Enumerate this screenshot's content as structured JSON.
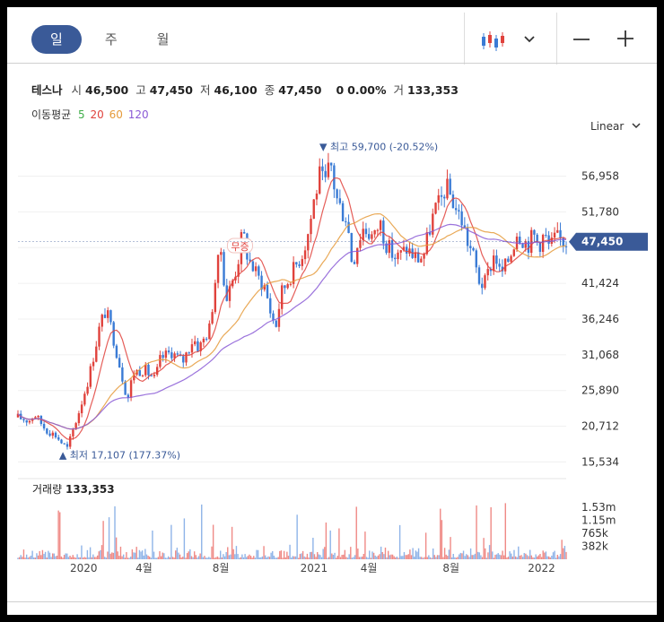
{
  "tabs": [
    {
      "label": "일",
      "active": true
    },
    {
      "label": "주",
      "active": false
    },
    {
      "label": "월",
      "active": false
    }
  ],
  "quote": {
    "name": "테스나",
    "open_label": "시",
    "open": "46,500",
    "high_label": "고",
    "high": "47,450",
    "low_label": "저",
    "low": "46,100",
    "close_label": "종",
    "close": "47,450",
    "change": "0",
    "change_pct": "0.00%",
    "volume_label": "거",
    "volume": "133,353"
  },
  "ma": {
    "label": "이동평균",
    "periods": [
      {
        "label": "5",
        "color": "#3fae49"
      },
      {
        "label": "20",
        "color": "#e0423c"
      },
      {
        "label": "60",
        "color": "#e59a3a"
      },
      {
        "label": "120",
        "color": "#8a5ad6"
      }
    ]
  },
  "scale_label": "Linear",
  "icons": {
    "chart_type": "candlestick-icon",
    "dropdown": "chevron-down-icon",
    "zoom_out": "minus-icon",
    "zoom_in": "plus-icon"
  },
  "chart_data": {
    "type": "candlestick",
    "price_axis": {
      "ticks": [
        56958,
        51780,
        46602,
        41424,
        36246,
        31068,
        25890,
        20712,
        15534
      ],
      "tick_labels": [
        "56,958",
        "51,780",
        "",
        "41,424",
        "36,246",
        "31,068",
        "25,890",
        "20,712",
        "15,534"
      ],
      "range": [
        13900,
        61700
      ]
    },
    "current_price": {
      "value": 47450,
      "label": "47,450",
      "color": "#3a5a98"
    },
    "max_annotation": {
      "label": "최고",
      "value": "59,700",
      "pct": "(-20.52%)",
      "price": 59700
    },
    "min_annotation": {
      "label": "최저",
      "value": "17,107",
      "pct": "(177.37%)",
      "price": 17107
    },
    "event_marker": {
      "label": "무증",
      "price": 46500
    },
    "time_axis": {
      "labels": [
        "2020",
        "4월",
        "8월",
        "2021",
        "4월",
        "8월",
        "2022"
      ]
    },
    "price_path": [
      {
        "t": 0.0,
        "p": 22000
      },
      {
        "t": 0.02,
        "p": 21500
      },
      {
        "t": 0.03,
        "p": 22500
      },
      {
        "t": 0.05,
        "p": 20300
      },
      {
        "t": 0.07,
        "p": 19300
      },
      {
        "t": 0.08,
        "p": 18300
      },
      {
        "t": 0.09,
        "p": 17500
      },
      {
        "t": 0.11,
        "p": 22500
      },
      {
        "t": 0.13,
        "p": 28000
      },
      {
        "t": 0.15,
        "p": 35500
      },
      {
        "t": 0.16,
        "p": 37500
      },
      {
        "t": 0.17,
        "p": 35000
      },
      {
        "t": 0.19,
        "p": 28000
      },
      {
        "t": 0.2,
        "p": 24500
      },
      {
        "t": 0.21,
        "p": 28500
      },
      {
        "t": 0.23,
        "p": 29000
      },
      {
        "t": 0.25,
        "p": 27500
      },
      {
        "t": 0.26,
        "p": 30500
      },
      {
        "t": 0.28,
        "p": 31500
      },
      {
        "t": 0.3,
        "p": 30000
      },
      {
        "t": 0.32,
        "p": 33500
      },
      {
        "t": 0.33,
        "p": 32000
      },
      {
        "t": 0.35,
        "p": 35000
      },
      {
        "t": 0.36,
        "p": 42000
      },
      {
        "t": 0.37,
        "p": 46500
      },
      {
        "t": 0.38,
        "p": 39000
      },
      {
        "t": 0.4,
        "p": 44000
      },
      {
        "t": 0.41,
        "p": 49000
      },
      {
        "t": 0.42,
        "p": 45000
      },
      {
        "t": 0.44,
        "p": 42000
      },
      {
        "t": 0.45,
        "p": 41000
      },
      {
        "t": 0.46,
        "p": 37500
      },
      {
        "t": 0.47,
        "p": 35000
      },
      {
        "t": 0.48,
        "p": 40000
      },
      {
        "t": 0.5,
        "p": 43000
      },
      {
        "t": 0.52,
        "p": 46000
      },
      {
        "t": 0.53,
        "p": 49000
      },
      {
        "t": 0.54,
        "p": 53500
      },
      {
        "t": 0.55,
        "p": 57000
      },
      {
        "t": 0.56,
        "p": 55500
      },
      {
        "t": 0.57,
        "p": 59000
      },
      {
        "t": 0.58,
        "p": 54000
      },
      {
        "t": 0.59,
        "p": 52000
      },
      {
        "t": 0.6,
        "p": 51000
      },
      {
        "t": 0.61,
        "p": 44000
      },
      {
        "t": 0.62,
        "p": 47500
      },
      {
        "t": 0.63,
        "p": 49500
      },
      {
        "t": 0.65,
        "p": 48000
      },
      {
        "t": 0.66,
        "p": 50500
      },
      {
        "t": 0.67,
        "p": 47500
      },
      {
        "t": 0.68,
        "p": 46000
      },
      {
        "t": 0.69,
        "p": 45000
      },
      {
        "t": 0.71,
        "p": 46500
      },
      {
        "t": 0.72,
        "p": 45500
      },
      {
        "t": 0.73,
        "p": 45000
      },
      {
        "t": 0.74,
        "p": 45500
      },
      {
        "t": 0.75,
        "p": 49000
      },
      {
        "t": 0.76,
        "p": 52000
      },
      {
        "t": 0.77,
        "p": 53000
      },
      {
        "t": 0.78,
        "p": 55500
      },
      {
        "t": 0.79,
        "p": 54000
      },
      {
        "t": 0.8,
        "p": 52000
      },
      {
        "t": 0.81,
        "p": 50500
      },
      {
        "t": 0.82,
        "p": 47500
      },
      {
        "t": 0.83,
        "p": 45500
      },
      {
        "t": 0.84,
        "p": 42000
      },
      {
        "t": 0.85,
        "p": 41000
      },
      {
        "t": 0.86,
        "p": 43500
      },
      {
        "t": 0.87,
        "p": 46000
      },
      {
        "t": 0.88,
        "p": 42500
      },
      {
        "t": 0.89,
        "p": 44000
      },
      {
        "t": 0.9,
        "p": 46000
      },
      {
        "t": 0.91,
        "p": 49000
      },
      {
        "t": 0.92,
        "p": 48000
      },
      {
        "t": 0.93,
        "p": 47000
      },
      {
        "t": 0.94,
        "p": 48500
      },
      {
        "t": 0.95,
        "p": 47000
      },
      {
        "t": 0.96,
        "p": 48500
      },
      {
        "t": 0.97,
        "p": 46500
      },
      {
        "t": 0.98,
        "p": 48000
      },
      {
        "t": 1.0,
        "p": 47450
      }
    ],
    "volume": {
      "label": "거래량",
      "value": "133,353",
      "axis_labels": [
        "1.53m",
        "1.15m",
        "765k",
        "382k"
      ],
      "axis_values": [
        1530000,
        1150000,
        765000,
        382000
      ],
      "max": 1800000
    }
  }
}
